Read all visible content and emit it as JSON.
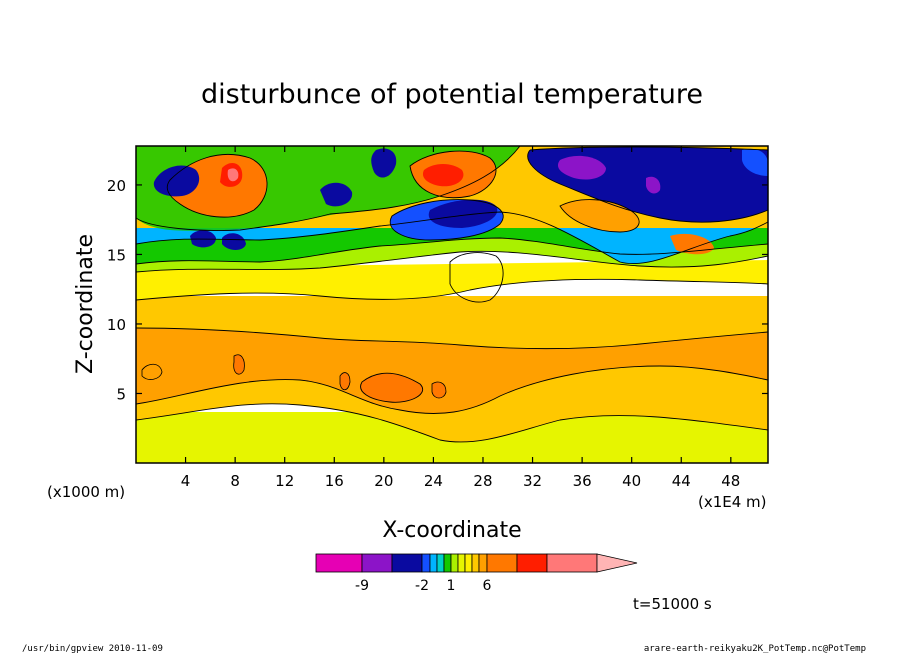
{
  "chart_data": {
    "type": "heatmap",
    "title": "disturbunce of potential temperature",
    "xlabel": "X-coordinate",
    "ylabel": "Z-coordinate",
    "x_unit_label": "(x1E4 m)",
    "y_unit_label": "(x1000 m)",
    "xlim": [
      0,
      51
    ],
    "ylim": [
      0,
      22.8
    ],
    "x_ticks": [
      4,
      8,
      12,
      16,
      20,
      24,
      28,
      32,
      36,
      40,
      44,
      48
    ],
    "y_ticks": [
      5,
      10,
      15,
      20
    ],
    "colorbar": {
      "colors": [
        "#e600b4",
        "#8c14c8",
        "#0a0aa0",
        "#1450ff",
        "#00b4ff",
        "#00d2c8",
        "#14c800",
        "#aaf000",
        "#e6f500",
        "#fff000",
        "#ffc800",
        "#ffa000",
        "#ff7800",
        "#ff1e00",
        "#ff7878",
        "#ffb4b4"
      ],
      "labels": [
        "-9",
        "-2",
        "1",
        "6"
      ]
    },
    "time_label": "t=51000 s"
  },
  "footer": {
    "left": "/usr/bin/gpview  2010-11-09",
    "right": "arare-earth-reikyaku2K_PotTemp.nc@PotTemp"
  }
}
